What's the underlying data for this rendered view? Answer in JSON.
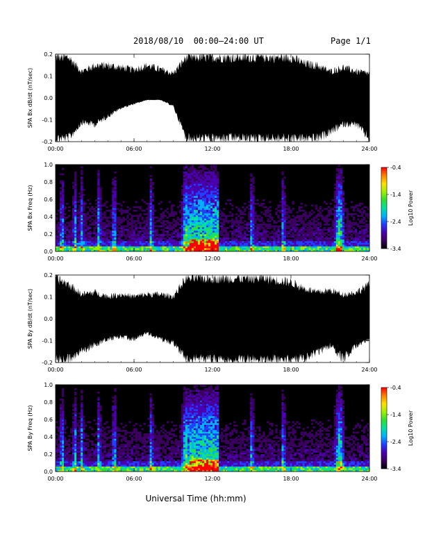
{
  "header": {
    "title": "2018/08/10  00:00–24:00 UT",
    "page": "Page 1/1"
  },
  "footer": {
    "xlabel": "Universal Time (hh:mm)"
  },
  "chart_data": [
    {
      "type": "line",
      "ylabel": "SPA Bx dB/dt (nT/sec)",
      "xlim": [
        "00:00",
        "24:00"
      ],
      "ylim": [
        -0.2,
        0.2
      ],
      "xticks": [
        "00:00",
        "06:00",
        "12:00",
        "18:00",
        "24:00"
      ],
      "yticks": [
        "-0.2",
        "-0.1",
        "0.0",
        "0.1",
        "0.2"
      ],
      "envelope_hours": [
        0,
        1,
        2,
        3,
        4,
        5,
        6,
        7,
        8,
        9,
        10,
        11,
        12,
        13,
        14,
        15,
        16,
        17,
        18,
        19,
        20,
        21,
        22,
        23,
        24
      ],
      "envelope_upper": [
        0.2,
        0.2,
        0.13,
        0.16,
        0.16,
        0.15,
        0.14,
        0.16,
        0.14,
        0.12,
        0.2,
        0.2,
        0.2,
        0.2,
        0.2,
        0.2,
        0.2,
        0.2,
        0.2,
        0.17,
        0.16,
        0.13,
        0.15,
        0.13,
        0.12
      ],
      "envelope_lower": [
        -0.2,
        -0.2,
        -0.12,
        -0.13,
        -0.09,
        -0.05,
        -0.03,
        -0.01,
        -0.01,
        -0.04,
        -0.2,
        -0.2,
        -0.2,
        -0.2,
        -0.2,
        -0.2,
        -0.2,
        -0.2,
        -0.2,
        -0.2,
        -0.2,
        -0.17,
        -0.13,
        -0.13,
        -0.2
      ]
    },
    {
      "type": "heatmap",
      "ylabel": "SPA Bx Freq (Hz)",
      "colorbar_label": "Log10 Power",
      "colorbar_ticks": [
        "-0.4",
        "-1.4",
        "-2.4",
        "-3.4"
      ],
      "clim": [
        -3.4,
        -0.4
      ],
      "xlim": [
        "00:00",
        "24:00"
      ],
      "ylim": [
        0.0,
        1.0
      ],
      "xticks": [
        "00:00",
        "06:00",
        "12:00",
        "18:00",
        "24:00"
      ],
      "yticks": [
        "0.0",
        "0.2",
        "0.4",
        "0.6",
        "0.8",
        "1.0"
      ],
      "bright_bursts_hours": [
        0.5,
        1.5,
        2.0,
        3.3,
        4.5,
        7.3,
        10.3,
        10.6,
        11.2,
        15.0,
        17.4,
        21.7
      ],
      "strongest_burst_hours": [
        10.0,
        12.0,
        21.7
      ]
    },
    {
      "type": "line",
      "ylabel": "SPA By dB/dt (nT/sec)",
      "xlim": [
        "00:00",
        "24:00"
      ],
      "ylim": [
        -0.2,
        0.2
      ],
      "xticks": [
        "00:00",
        "06:00",
        "12:00",
        "18:00",
        "24:00"
      ],
      "yticks": [
        "-0.2",
        "-0.1",
        "0.0",
        "0.1",
        "0.2"
      ],
      "envelope_hours": [
        0,
        1,
        2,
        3,
        4,
        5,
        6,
        7,
        8,
        9,
        10,
        11,
        12,
        13,
        14,
        15,
        16,
        17,
        18,
        19,
        20,
        21,
        22,
        23,
        24
      ],
      "envelope_upper": [
        0.2,
        0.17,
        0.12,
        0.13,
        0.11,
        0.12,
        0.11,
        0.12,
        0.12,
        0.11,
        0.2,
        0.2,
        0.2,
        0.2,
        0.2,
        0.2,
        0.2,
        0.19,
        0.18,
        0.15,
        0.13,
        0.14,
        0.12,
        0.13,
        0.17
      ],
      "envelope_lower": [
        -0.2,
        -0.2,
        -0.16,
        -0.13,
        -0.1,
        -0.09,
        -0.1,
        -0.07,
        -0.1,
        -0.12,
        -0.2,
        -0.2,
        -0.2,
        -0.2,
        -0.2,
        -0.2,
        -0.2,
        -0.2,
        -0.2,
        -0.2,
        -0.17,
        -0.13,
        -0.2,
        -0.13,
        -0.1
      ]
    },
    {
      "type": "heatmap",
      "ylabel": "SPA By Freq (Hz)",
      "colorbar_label": "Log10 Power",
      "colorbar_ticks": [
        "-0.4",
        "-1.4",
        "-2.4",
        "-3.4"
      ],
      "clim": [
        -3.4,
        -0.4
      ],
      "xlim": [
        "00:00",
        "24:00"
      ],
      "ylim": [
        0.0,
        1.0
      ],
      "xticks": [
        "00:00",
        "06:00",
        "12:00",
        "18:00",
        "24:00"
      ],
      "yticks": [
        "0.0",
        "0.2",
        "0.4",
        "0.6",
        "0.8",
        "1.0"
      ],
      "bright_bursts_hours": [
        0.5,
        1.5,
        2.0,
        3.3,
        4.5,
        7.3,
        10.3,
        10.6,
        11.2,
        15.0,
        17.4,
        21.7
      ],
      "strongest_burst_hours": [
        10.0,
        12.0,
        21.7
      ]
    }
  ],
  "colors": {
    "background": "#ffffff",
    "plot_bg": "#000000",
    "colormap": [
      "#000000",
      "#3a0060",
      "#4b00b0",
      "#2040ff",
      "#00b0ff",
      "#00e0a0",
      "#30e030",
      "#a0f000",
      "#ffe000",
      "#ff8000",
      "#ff0000"
    ]
  }
}
